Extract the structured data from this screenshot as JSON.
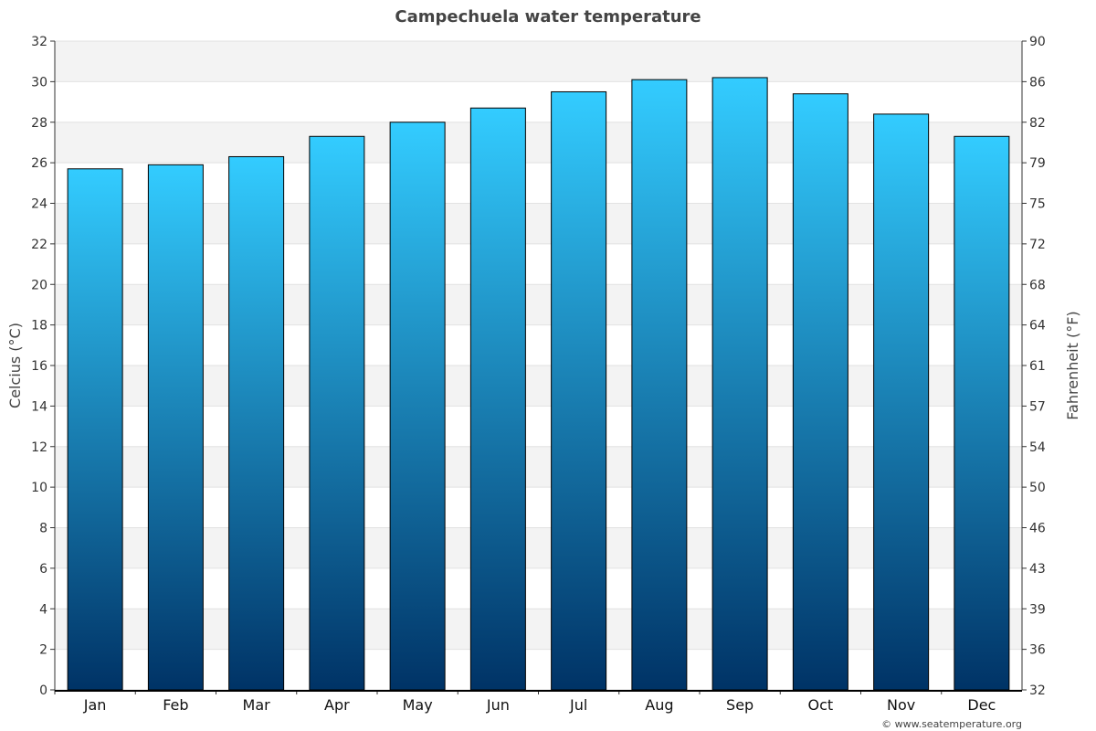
{
  "chart_data": {
    "type": "bar",
    "title": "Campechuela water temperature",
    "categories": [
      "Jan",
      "Feb",
      "Mar",
      "Apr",
      "May",
      "Jun",
      "Jul",
      "Aug",
      "Sep",
      "Oct",
      "Nov",
      "Dec"
    ],
    "values": [
      25.7,
      25.9,
      26.3,
      27.3,
      28.0,
      28.7,
      29.5,
      30.1,
      30.2,
      29.4,
      28.4,
      27.3
    ],
    "ylabel": "Celcius (°C)",
    "y2label": "Fahrenheit (°F)",
    "ylim": [
      0,
      32
    ],
    "yticks": [
      "0",
      "2",
      "4",
      "6",
      "8",
      "10",
      "12",
      "14",
      "16",
      "18",
      "20",
      "22",
      "24",
      "26",
      "28",
      "30",
      "32"
    ],
    "y2ticks": [
      "32",
      "36",
      "39",
      "43",
      "46",
      "50",
      "54",
      "57",
      "61",
      "64",
      "68",
      "72",
      "75",
      "79",
      "82",
      "86",
      "90"
    ],
    "grid": true,
    "colors": {
      "bar_top": "#33ccff",
      "bar_bottom": "#003366",
      "band": "#f3f3f3"
    }
  },
  "credit": "© www.seatemperature.org"
}
